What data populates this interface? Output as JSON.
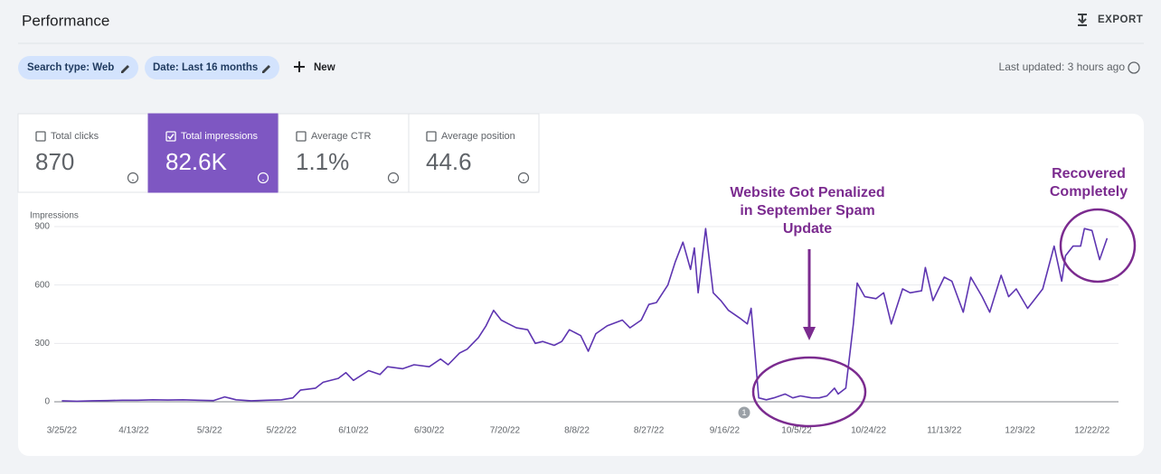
{
  "header": {
    "title": "Performance",
    "export": "EXPORT"
  },
  "filters": {
    "chips": [
      "Search type: Web",
      "Date: Last 16 months"
    ],
    "new": "New",
    "last_updated": "Last updated: 3 hours ago"
  },
  "metrics": [
    {
      "label": "Total clicks",
      "value": "870",
      "checked": false
    },
    {
      "label": "Total impressions",
      "value": "82.6K",
      "checked": true
    },
    {
      "label": "Average CTR",
      "value": "1.1%",
      "checked": false
    },
    {
      "label": "Average position",
      "value": "44.6",
      "checked": false
    }
  ],
  "chart_data": {
    "type": "line",
    "y_label": "Impressions",
    "x": [
      0,
      4,
      8,
      12,
      16,
      20,
      24,
      28,
      32,
      36,
      40,
      43,
      46,
      50,
      54,
      58,
      61,
      63,
      67,
      69,
      73,
      75,
      77,
      81,
      84,
      86,
      90,
      93,
      97,
      100,
      102,
      105,
      107,
      110,
      112,
      114,
      116,
      118,
      120,
      123,
      125,
      127,
      130,
      132,
      134,
      137,
      139,
      141,
      144,
      148,
      150,
      153,
      155,
      157,
      160,
      162,
      164,
      166,
      167,
      168,
      170,
      172,
      174,
      176,
      179,
      181,
      182,
      184,
      186,
      188,
      191,
      193,
      195,
      198,
      200,
      202,
      204,
      205,
      207,
      209,
      210,
      212,
      215,
      217,
      219,
      222,
      224,
      227,
      228,
      230,
      233,
      235,
      238,
      240,
      243,
      245,
      248,
      250,
      252,
      255,
      257,
      259,
      262,
      264,
      265,
      267,
      269,
      270,
      272,
      274,
      276
    ],
    "series": [
      {
        "color": "#5e35b1",
        "values": [
          5,
          3,
          5,
          6,
          8,
          8,
          10,
          9,
          10,
          8,
          6,
          25,
          10,
          5,
          8,
          10,
          20,
          60,
          70,
          100,
          120,
          150,
          110,
          160,
          140,
          180,
          170,
          190,
          180,
          220,
          190,
          250,
          270,
          330,
          390,
          470,
          420,
          400,
          380,
          370,
          300,
          310,
          290,
          310,
          370,
          340,
          260,
          350,
          390,
          420,
          380,
          420,
          500,
          510,
          600,
          720,
          820,
          680,
          790,
          560,
          890,
          560,
          520,
          470,
          430,
          400,
          480,
          20,
          10,
          20,
          40,
          20,
          30,
          20,
          20,
          30,
          70,
          40,
          70,
          400,
          610,
          540,
          530,
          560,
          400,
          580,
          560,
          570,
          690,
          520,
          640,
          620,
          460,
          640,
          540,
          460,
          650,
          540,
          580,
          480,
          530,
          580,
          800,
          620,
          750,
          800,
          800,
          890,
          880,
          730,
          840
        ]
      }
    ],
    "xlim": [
      -2,
      279
    ],
    "xticks": [
      {
        "value": 0,
        "label": "3/25/22"
      },
      {
        "value": 19,
        "label": "4/13/22"
      },
      {
        "value": 39,
        "label": "5/3/22"
      },
      {
        "value": 58,
        "label": "5/22/22"
      },
      {
        "value": 77,
        "label": "6/10/22"
      },
      {
        "value": 97,
        "label": "6/30/22"
      },
      {
        "value": 117,
        "label": "7/20/22"
      },
      {
        "value": 136,
        "label": "8/8/22"
      },
      {
        "value": 155,
        "label": "8/27/22"
      },
      {
        "value": 175,
        "label": "9/16/22"
      },
      {
        "value": 194,
        "label": "10/5/22"
      },
      {
        "value": 213,
        "label": "10/24/22"
      },
      {
        "value": 233,
        "label": "11/13/22"
      },
      {
        "value": 253,
        "label": "12/3/22"
      },
      {
        "value": 272,
        "label": "12/22/22"
      }
    ],
    "ylim": [
      0,
      900
    ],
    "yticks": [
      0,
      300,
      600,
      900
    ],
    "grid": true,
    "event_marker": "1",
    "annotations": [
      {
        "lines": [
          "Website Got Penalized",
          "in September Spam",
          "Update"
        ],
        "color": "#7b2b8f"
      },
      {
        "lines": [
          "Recovered",
          "Completely"
        ],
        "color": "#7b2b8f"
      }
    ]
  }
}
